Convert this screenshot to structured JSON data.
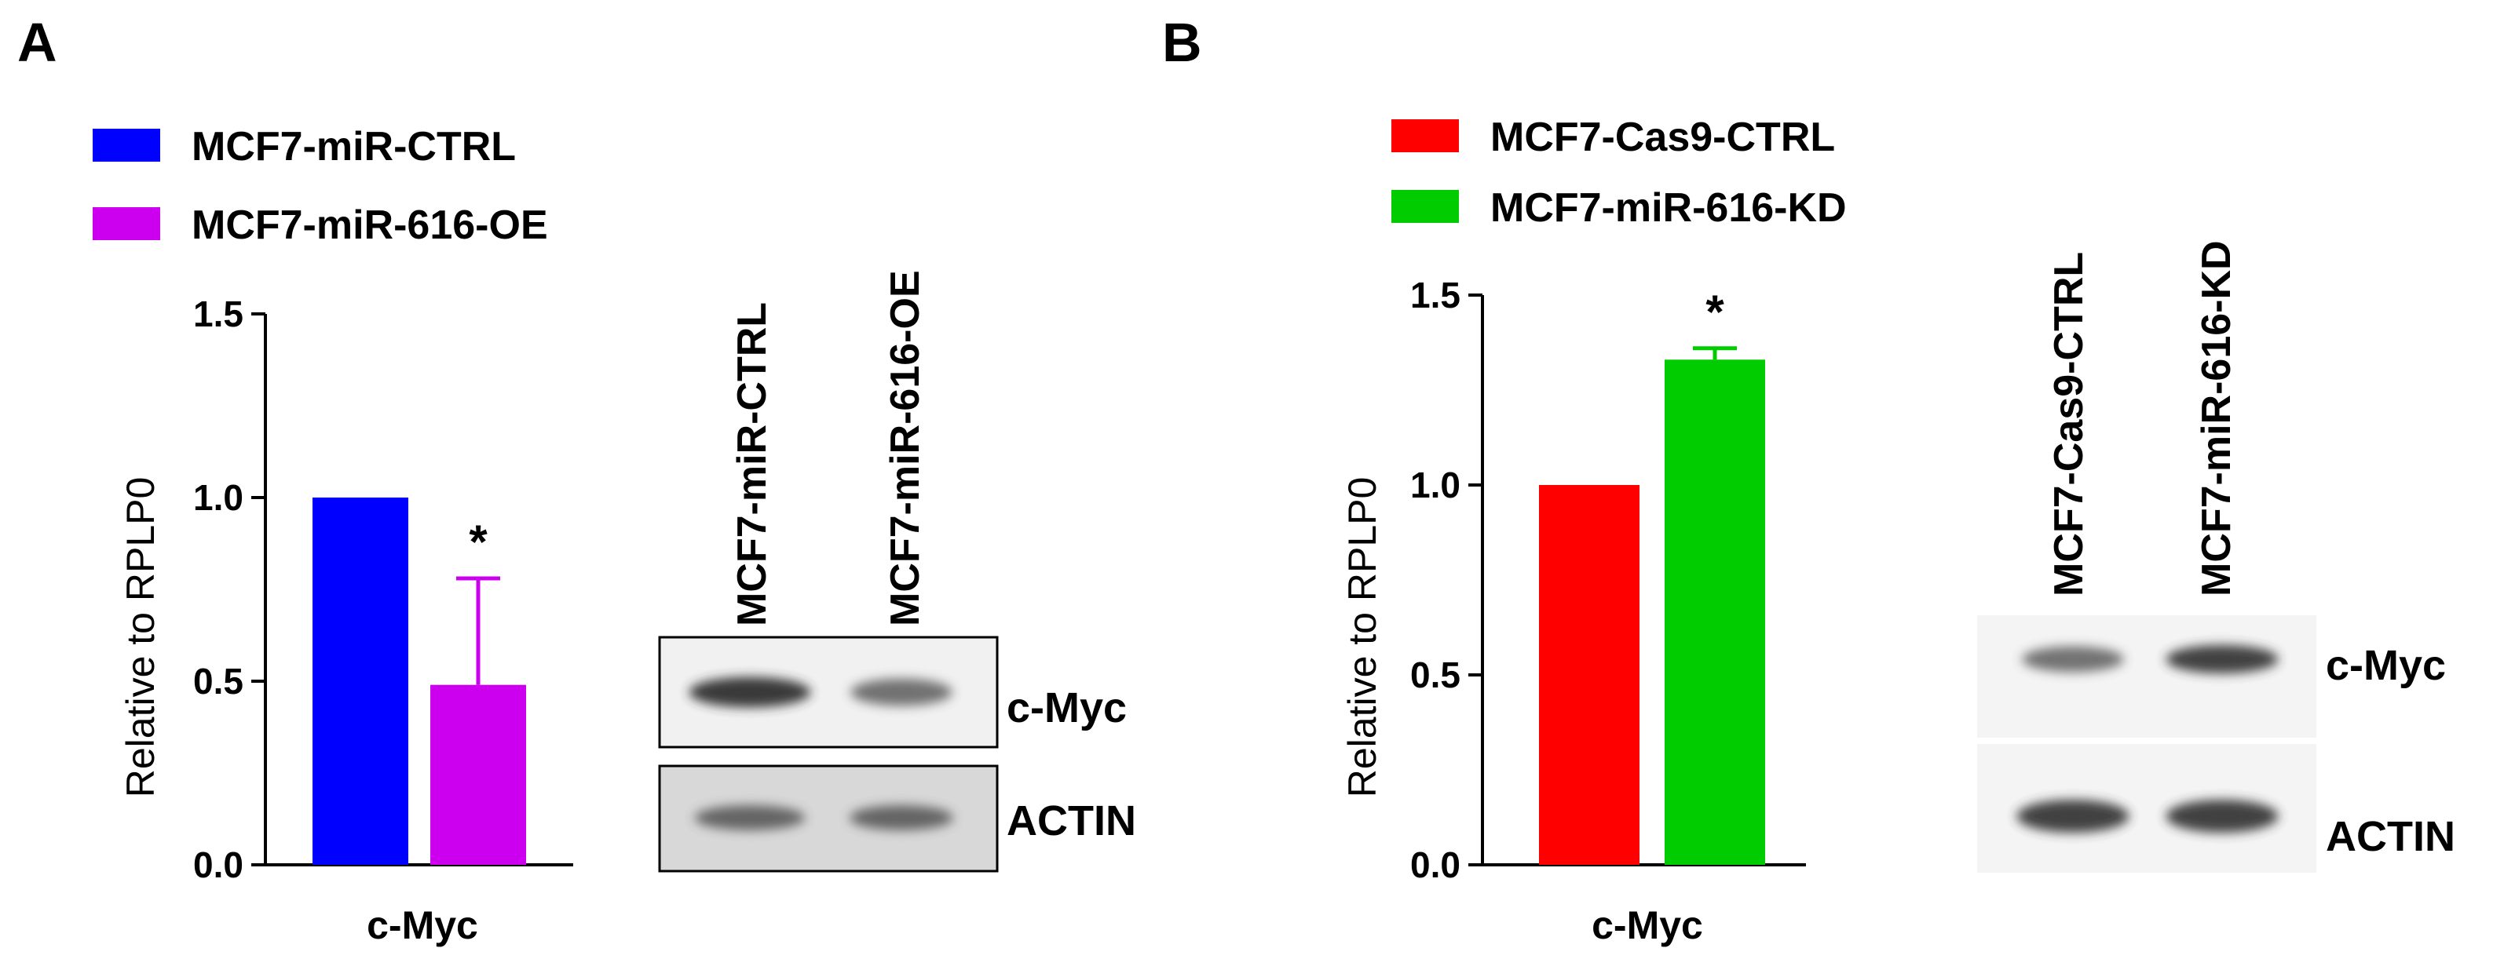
{
  "panels": [
    {
      "letter": "A",
      "legend": [
        {
          "label": "MCF7-miR-CTRL",
          "color": "#0000ff"
        },
        {
          "label": "MCF7-miR-616-OE",
          "color": "#cc00ee"
        }
      ],
      "blot": {
        "lanes": [
          "MCF7-miR-CTRL",
          "MCF7-miR-616-OE"
        ],
        "bands": [
          {
            "label": "c-Myc",
            "intensities": [
              0.9,
              0.55
            ]
          },
          {
            "label": "ACTIN",
            "intensities": [
              0.6,
              0.6
            ]
          }
        ]
      }
    },
    {
      "letter": "B",
      "legend": [
        {
          "label": "MCF7-Cas9-CTRL",
          "color": "#ff0000"
        },
        {
          "label": "MCF7-miR-616-KD",
          "color": "#00cc00"
        }
      ],
      "blot": {
        "lanes": [
          "MCF7-Cas9-CTRL",
          "MCF7-miR-616-KD"
        ],
        "bands": [
          {
            "label": "c-Myc",
            "intensities": [
              0.55,
              0.85
            ]
          },
          {
            "label": "ACTIN",
            "intensities": [
              0.85,
              0.85
            ]
          }
        ]
      }
    }
  ],
  "chart_data": [
    {
      "type": "bar",
      "categories": [
        "c-Myc"
      ],
      "series": [
        {
          "name": "MCF7-miR-CTRL",
          "values": [
            1.0
          ],
          "error": [
            0
          ],
          "color": "#0000ff"
        },
        {
          "name": "MCF7-miR-616-OE",
          "values": [
            0.49
          ],
          "error": [
            0.29
          ],
          "color": "#cc00ee"
        }
      ],
      "ylabel": "Relative to RPLP0",
      "ylim": [
        0,
        1.5
      ],
      "yticks": [
        "0.0",
        "0.5",
        "1.0",
        "1.5"
      ],
      "annotations": [
        {
          "text": "*",
          "series": 1
        }
      ]
    },
    {
      "type": "bar",
      "categories": [
        "c-Myc"
      ],
      "series": [
        {
          "name": "MCF7-Cas9-CTRL",
          "values": [
            1.0
          ],
          "error": [
            0
          ],
          "color": "#ff0000"
        },
        {
          "name": "MCF7-miR-616-KD",
          "values": [
            1.33
          ],
          "error": [
            0.03
          ],
          "color": "#00cc00"
        }
      ],
      "ylabel": "Relative to RPLP0",
      "ylim": [
        0,
        1.5
      ],
      "yticks": [
        "0.0",
        "0.5",
        "1.0",
        "1.5"
      ],
      "annotations": [
        {
          "text": "*",
          "series": 1
        }
      ]
    }
  ]
}
